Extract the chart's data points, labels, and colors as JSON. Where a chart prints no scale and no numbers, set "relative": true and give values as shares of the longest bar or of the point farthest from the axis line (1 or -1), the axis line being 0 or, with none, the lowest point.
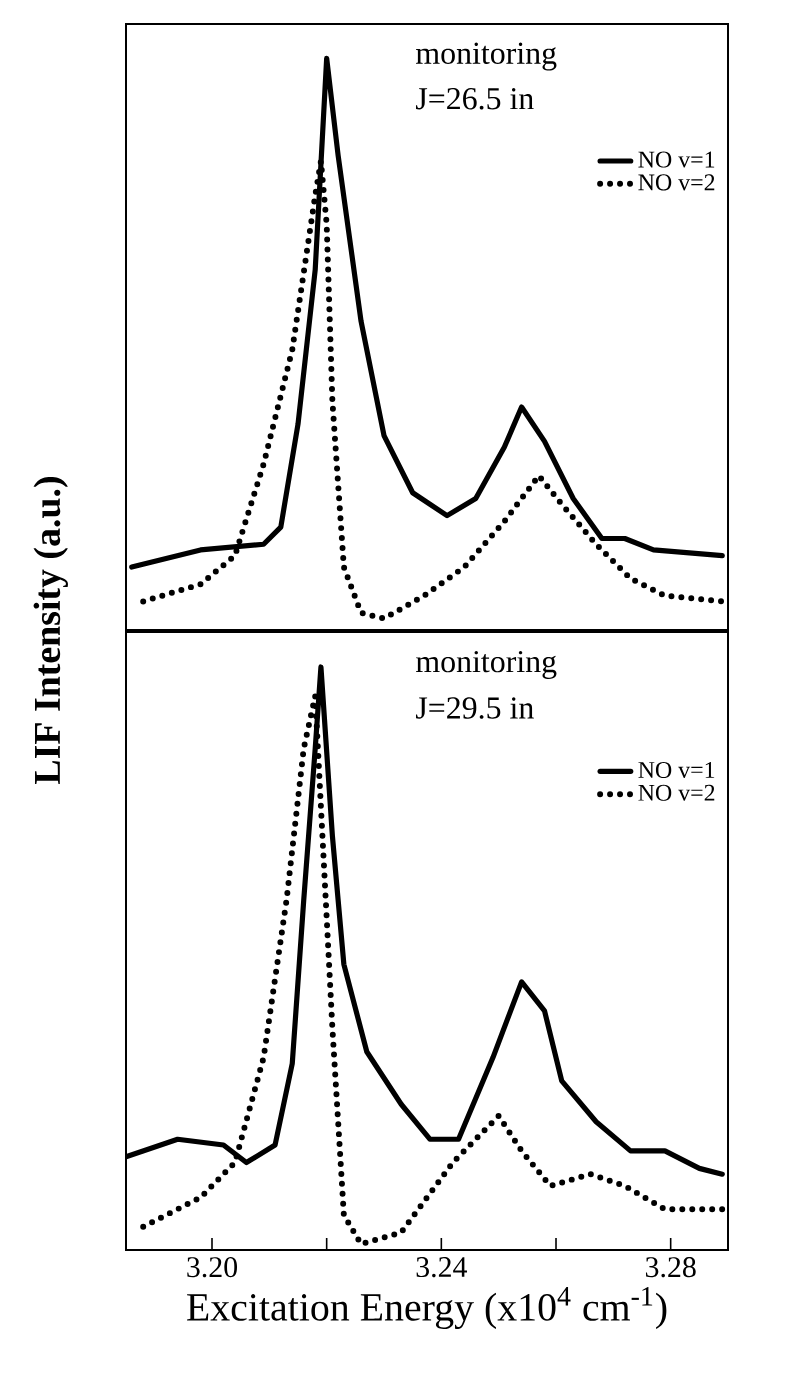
{
  "chart_data": [
    {
      "type": "line",
      "relative": true,
      "ylabel": "LIF Intensity (a.u.)",
      "annotations": [
        "monitoring",
        "J=26.5 in"
      ],
      "legend": "top right",
      "tick_labels": false,
      "xlim": [
        3.185,
        3.29
      ],
      "series": [
        {
          "name": "NO v=1",
          "color": "#000000",
          "line_style": "solid",
          "x": [
            3.186,
            3.198,
            3.209,
            3.212,
            3.215,
            3.218,
            3.22,
            3.222,
            3.226,
            3.23,
            3.235,
            3.241,
            3.246,
            3.251,
            3.254,
            3.258,
            3.263,
            3.268,
            3.272,
            3.277,
            3.289
          ],
          "values": [
            0.11,
            0.14,
            0.15,
            0.18,
            0.36,
            0.63,
            1.0,
            0.83,
            0.54,
            0.34,
            0.24,
            0.2,
            0.23,
            0.32,
            0.39,
            0.33,
            0.23,
            0.16,
            0.16,
            0.14,
            0.13
          ]
        },
        {
          "name": "NO v=2",
          "color": "#000000",
          "line_style": "dotted",
          "x": [
            3.188,
            3.198,
            3.204,
            3.209,
            3.214,
            3.218,
            3.219,
            3.22,
            3.221,
            3.223,
            3.226,
            3.23,
            3.237,
            3.244,
            3.251,
            3.257,
            3.261,
            3.267,
            3.273,
            3.279,
            3.289
          ],
          "values": [
            0.05,
            0.08,
            0.13,
            0.29,
            0.49,
            0.76,
            0.82,
            0.71,
            0.4,
            0.11,
            0.03,
            0.02,
            0.06,
            0.11,
            0.19,
            0.27,
            0.22,
            0.15,
            0.09,
            0.06,
            0.05
          ]
        }
      ]
    },
    {
      "type": "line",
      "relative": true,
      "xlabel": "Excitation Energy (x10$^{4}$ cm$^{-1}$)",
      "annotations": [
        "monitoring",
        "J=29.5 in"
      ],
      "legend": "top right",
      "tick_labels": "x",
      "xlim": [
        3.185,
        3.29
      ],
      "xticks": [
        {
          "value": 3.2,
          "label": "3.20"
        },
        {
          "value": 3.22,
          "label": null
        },
        3.24,
        {
          "value": 3.26,
          "label": null
        },
        3.28
      ],
      "series": [
        {
          "name": "NO v=1",
          "color": "#000000",
          "line_style": "solid",
          "x": [
            3.185,
            3.194,
            3.202,
            3.206,
            3.211,
            3.214,
            3.216,
            3.218,
            3.219,
            3.221,
            3.223,
            3.227,
            3.233,
            3.238,
            3.243,
            3.249,
            3.254,
            3.258,
            3.261,
            3.267,
            3.273,
            3.279,
            3.285,
            3.289
          ],
          "values": [
            0.16,
            0.19,
            0.18,
            0.15,
            0.18,
            0.32,
            0.6,
            0.86,
            1.0,
            0.71,
            0.49,
            0.34,
            0.25,
            0.19,
            0.19,
            0.33,
            0.46,
            0.41,
            0.29,
            0.22,
            0.17,
            0.17,
            0.14,
            0.13
          ]
        },
        {
          "name": "NO v=2",
          "color": "#000000",
          "line_style": "dotted",
          "x": [
            3.188,
            3.198,
            3.204,
            3.209,
            3.213,
            3.216,
            3.218,
            3.219,
            3.221,
            3.223,
            3.226,
            3.233,
            3.242,
            3.25,
            3.254,
            3.259,
            3.266,
            3.272,
            3.279,
            3.289
          ],
          "values": [
            0.04,
            0.09,
            0.15,
            0.33,
            0.6,
            0.86,
            0.95,
            0.76,
            0.38,
            0.06,
            0.01,
            0.03,
            0.15,
            0.23,
            0.17,
            0.11,
            0.13,
            0.11,
            0.07,
            0.07
          ]
        }
      ]
    }
  ]
}
